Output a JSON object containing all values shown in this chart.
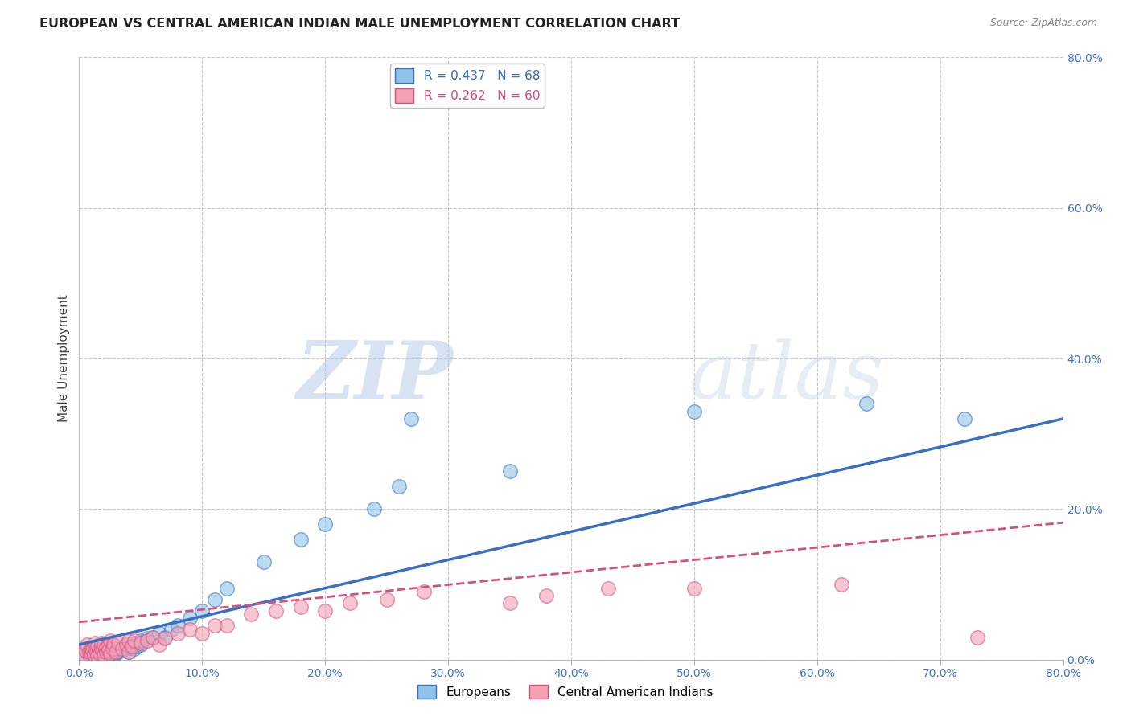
{
  "title": "EUROPEAN VS CENTRAL AMERICAN INDIAN MALE UNEMPLOYMENT CORRELATION CHART",
  "source": "Source: ZipAtlas.com",
  "ylabel": "Male Unemployment",
  "xlim": [
    0.0,
    0.8
  ],
  "ylim": [
    0.0,
    0.8
  ],
  "xticks": [
    0.0,
    0.1,
    0.2,
    0.3,
    0.4,
    0.5,
    0.6,
    0.7,
    0.8
  ],
  "yticks_right": [
    0.0,
    0.2,
    0.4,
    0.6,
    0.8
  ],
  "legend_r1": "R = 0.437   N = 68",
  "legend_r2": "R = 0.262   N = 60",
  "legend_label1": "Europeans",
  "legend_label2": "Central American Indians",
  "color_blue": "#8ec4e8",
  "color_pink": "#f4a0b5",
  "color_blue_line": "#3a6fc4",
  "color_pink_line": "#d45080",
  "watermark_zip": "ZIP",
  "watermark_atlas": "atlas",
  "background_color": "#ffffff",
  "grid_color": "#c8c8c8",
  "blue_slope": 0.375,
  "blue_intercept": 0.02,
  "pink_slope": 0.165,
  "pink_intercept": 0.05,
  "blue_scatter_x": [
    0.005,
    0.007,
    0.008,
    0.01,
    0.01,
    0.01,
    0.012,
    0.012,
    0.013,
    0.014,
    0.015,
    0.015,
    0.015,
    0.016,
    0.017,
    0.017,
    0.018,
    0.018,
    0.019,
    0.02,
    0.02,
    0.02,
    0.021,
    0.022,
    0.022,
    0.023,
    0.023,
    0.025,
    0.025,
    0.025,
    0.027,
    0.028,
    0.03,
    0.03,
    0.032,
    0.033,
    0.035,
    0.035,
    0.038,
    0.04,
    0.04,
    0.042,
    0.043,
    0.045,
    0.045,
    0.047,
    0.05,
    0.05,
    0.055,
    0.06,
    0.065,
    0.07,
    0.075,
    0.08,
    0.09,
    0.1,
    0.11,
    0.12,
    0.15,
    0.18,
    0.2,
    0.24,
    0.26,
    0.27,
    0.35,
    0.5,
    0.64,
    0.72
  ],
  "blue_scatter_y": [
    0.005,
    0.008,
    0.01,
    0.005,
    0.008,
    0.012,
    0.007,
    0.01,
    0.006,
    0.009,
    0.005,
    0.008,
    0.012,
    0.007,
    0.01,
    0.015,
    0.006,
    0.01,
    0.008,
    0.005,
    0.009,
    0.014,
    0.008,
    0.006,
    0.011,
    0.007,
    0.012,
    0.008,
    0.012,
    0.016,
    0.009,
    0.013,
    0.008,
    0.014,
    0.01,
    0.015,
    0.012,
    0.018,
    0.015,
    0.01,
    0.018,
    0.016,
    0.02,
    0.015,
    0.022,
    0.018,
    0.02,
    0.025,
    0.028,
    0.03,
    0.035,
    0.03,
    0.04,
    0.045,
    0.055,
    0.065,
    0.08,
    0.095,
    0.13,
    0.16,
    0.18,
    0.2,
    0.23,
    0.32,
    0.25,
    0.33,
    0.34,
    0.32
  ],
  "pink_scatter_x": [
    0.003,
    0.005,
    0.006,
    0.008,
    0.009,
    0.01,
    0.01,
    0.011,
    0.012,
    0.013,
    0.013,
    0.014,
    0.015,
    0.015,
    0.016,
    0.017,
    0.018,
    0.018,
    0.019,
    0.02,
    0.02,
    0.021,
    0.022,
    0.023,
    0.024,
    0.025,
    0.025,
    0.027,
    0.028,
    0.03,
    0.032,
    0.035,
    0.038,
    0.04,
    0.04,
    0.043,
    0.045,
    0.05,
    0.055,
    0.06,
    0.065,
    0.07,
    0.08,
    0.09,
    0.1,
    0.11,
    0.12,
    0.14,
    0.16,
    0.18,
    0.2,
    0.22,
    0.25,
    0.28,
    0.35,
    0.38,
    0.43,
    0.5,
    0.62,
    0.73
  ],
  "pink_scatter_y": [
    0.007,
    0.012,
    0.02,
    0.01,
    0.005,
    0.008,
    0.015,
    0.012,
    0.007,
    0.015,
    0.022,
    0.01,
    0.005,
    0.018,
    0.012,
    0.008,
    0.015,
    0.022,
    0.012,
    0.006,
    0.02,
    0.015,
    0.01,
    0.018,
    0.012,
    0.008,
    0.025,
    0.015,
    0.02,
    0.01,
    0.022,
    0.015,
    0.02,
    0.01,
    0.025,
    0.018,
    0.025,
    0.022,
    0.025,
    0.03,
    0.02,
    0.028,
    0.035,
    0.04,
    0.035,
    0.045,
    0.045,
    0.06,
    0.065,
    0.07,
    0.065,
    0.075,
    0.08,
    0.09,
    0.075,
    0.085,
    0.095,
    0.095,
    0.1,
    0.03
  ]
}
